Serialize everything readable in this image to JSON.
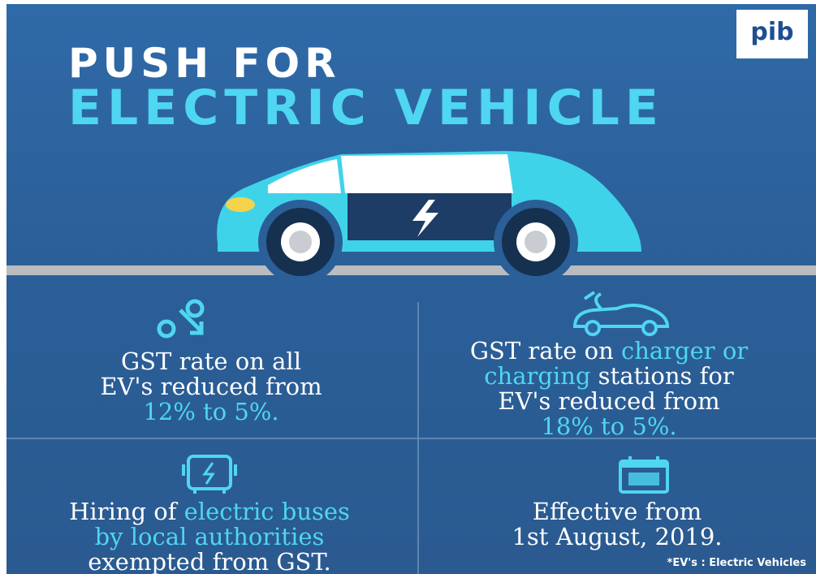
{
  "header": {
    "title_line1": "PUSH FOR",
    "title_line2": "ELECTRIC VEHICLE",
    "logo": "pib"
  },
  "cells": [
    {
      "lines": [
        [
          {
            "text": "GST rate on all",
            "accent": false
          }
        ],
        [
          {
            "text": "EV's reduced from",
            "accent": false
          }
        ],
        [
          {
            "text": "12% to 5%.",
            "accent": true
          }
        ]
      ]
    },
    {
      "lines": [
        [
          {
            "text": "GST rate on ",
            "accent": false
          },
          {
            "text": "charger or",
            "accent": true
          }
        ],
        [
          {
            "text": "charging",
            "accent": true
          },
          {
            "text": " stations for",
            "accent": false
          }
        ],
        [
          {
            "text": "EV's reduced from",
            "accent": false
          }
        ],
        [
          {
            "text": "18% to 5%.",
            "accent": true
          }
        ]
      ]
    },
    {
      "lines": [
        [
          {
            "text": "Hiring of ",
            "accent": false
          },
          {
            "text": "electric buses",
            "accent": true
          }
        ],
        [
          {
            "text": "by local authorities",
            "accent": true
          }
        ],
        [
          {
            "text": "exempted from GST.",
            "accent": false
          }
        ]
      ]
    },
    {
      "lines": [
        [
          {
            "text": "Effective from",
            "accent": false
          }
        ],
        [
          {
            "text": "1st August, 2019.",
            "accent": false
          }
        ]
      ]
    }
  ],
  "footnote": "*EV's : Electric Vehicles"
}
